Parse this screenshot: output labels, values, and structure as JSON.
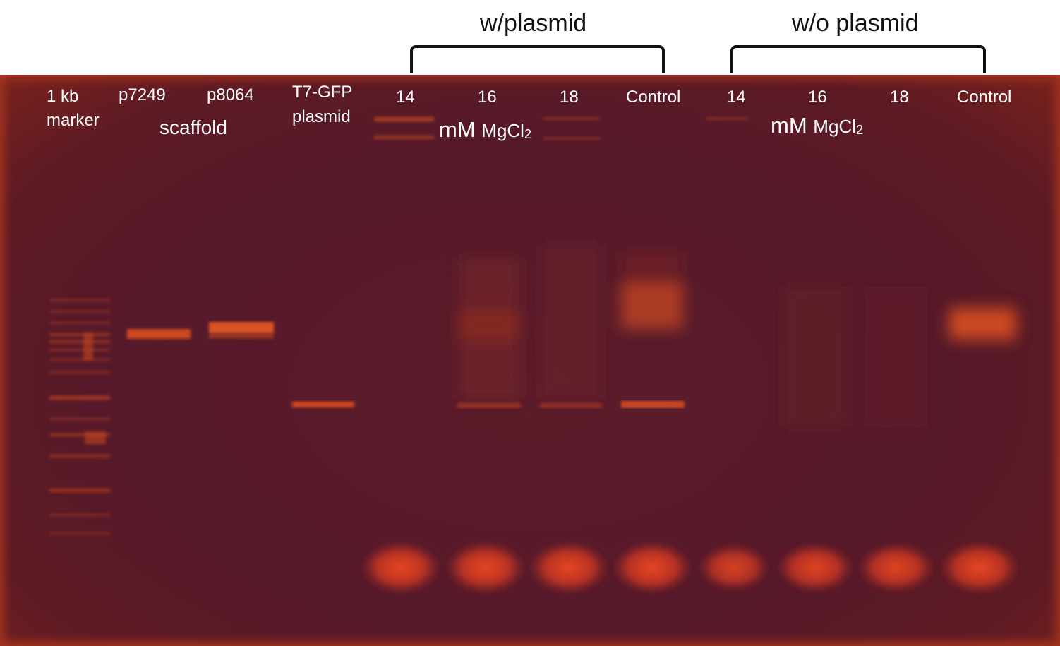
{
  "header": {
    "left_group": "w/plasmid",
    "right_group": "w/o plasmid"
  },
  "lanes": {
    "marker_line1": "1 kb",
    "marker_line2": "marker",
    "p7249": "p7249",
    "p8064": "p8064",
    "scaffold": "scaffold",
    "t7_line1": "T7-GFP",
    "t7_line2": "plasmid",
    "wp_14": "14",
    "wp_16": "16",
    "wp_18": "18",
    "wp_control": "Control",
    "wop_14": "14",
    "wop_16": "16",
    "wop_18": "18",
    "wop_control": "Control"
  },
  "units": {
    "left_mm": "mM",
    "left_mgcl": "MgCl",
    "left_sub": "2",
    "right_mm": "mM",
    "right_mgcl": "MgCl",
    "right_sub": "2"
  },
  "colors": {
    "gel_background": "#56192a",
    "gel_edge": "#a3341f",
    "band": "#ff5a28",
    "label_text": "#ffffff"
  }
}
